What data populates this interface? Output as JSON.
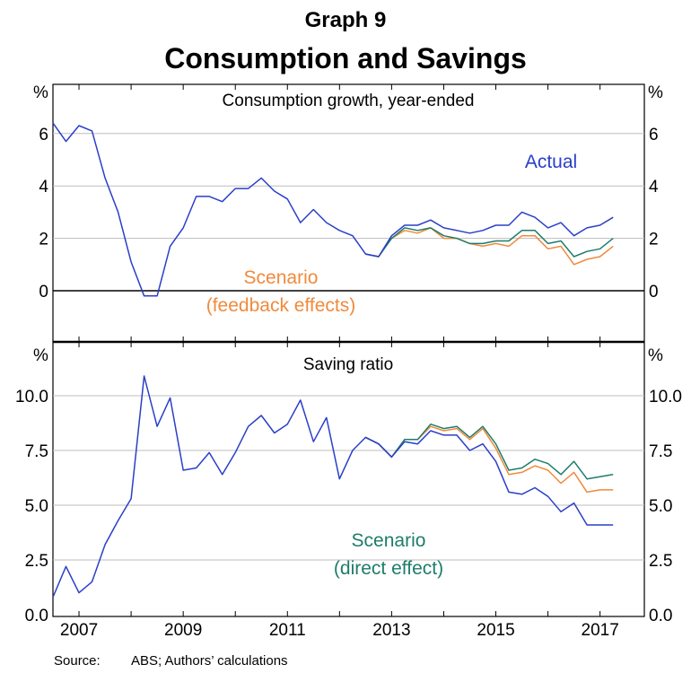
{
  "header": {
    "graph_label": "Graph 9",
    "title": "Consumption and Savings"
  },
  "source": {
    "label": "Source:",
    "text": "ABS; Authors’ calculations"
  },
  "x_axis": {
    "ticks": [
      "2007",
      "2009",
      "2011",
      "2013",
      "2015",
      "2017"
    ]
  },
  "colors": {
    "actual": "#2a3fc8",
    "feedback": "#f08a3c",
    "direct": "#1e7d6a"
  },
  "chart_data": [
    {
      "type": "line",
      "title": "Consumption growth, year-ended",
      "ylabel": "%",
      "ylim": [
        -2,
        7
      ],
      "yticks": [
        "6",
        "4",
        "2",
        "0"
      ],
      "ytick_values": [
        6,
        4,
        2,
        0
      ],
      "grid": true,
      "x_start": 2006.5,
      "x_step": 0.25,
      "series": [
        {
          "name": "Actual",
          "key": "actual",
          "values": [
            6.4,
            5.7,
            6.3,
            6.1,
            4.3,
            3.0,
            1.1,
            -0.2,
            -0.2,
            1.7,
            2.4,
            3.6,
            3.6,
            3.4,
            3.9,
            3.9,
            4.3,
            3.8,
            3.5,
            2.6,
            3.1,
            2.6,
            2.3,
            2.1,
            1.4,
            1.3,
            2.1,
            2.5,
            2.5,
            2.7,
            2.4,
            2.3,
            2.2,
            2.3,
            2.5,
            2.5,
            3.0,
            2.8,
            2.4,
            2.6,
            2.1,
            2.4,
            2.5,
            2.8
          ]
        },
        {
          "name": "Scenario (feedback effects)",
          "label_lines": [
            "Scenario",
            "(feedback effects)"
          ],
          "key": "feedback",
          "start_index": 24,
          "values": [
            1.4,
            1.3,
            2.0,
            2.3,
            2.2,
            2.4,
            2.0,
            2.0,
            1.8,
            1.7,
            1.8,
            1.7,
            2.1,
            2.1,
            1.6,
            1.7,
            1.0,
            1.2,
            1.3,
            1.7
          ]
        },
        {
          "name": "Scenario (direct effect)",
          "key": "direct",
          "start_index": 24,
          "values": [
            1.4,
            1.3,
            2.0,
            2.4,
            2.3,
            2.4,
            2.1,
            2.0,
            1.8,
            1.8,
            1.9,
            1.9,
            2.3,
            2.3,
            1.8,
            1.9,
            1.3,
            1.5,
            1.6,
            2.0
          ]
        }
      ],
      "labels": {
        "actual": "Actual"
      }
    },
    {
      "type": "line",
      "title": "Saving ratio",
      "ylabel": "%",
      "ylim": [
        0,
        11.5
      ],
      "yticks": [
        "10.0",
        "7.5",
        "5.0",
        "2.5",
        "0.0"
      ],
      "ytick_values": [
        10,
        7.5,
        5,
        2.5,
        0
      ],
      "grid": true,
      "x_start": 2006.5,
      "x_step": 0.25,
      "series": [
        {
          "name": "Actual",
          "key": "actual",
          "values": [
            0.8,
            2.2,
            1.0,
            1.5,
            3.2,
            4.3,
            5.3,
            10.9,
            8.6,
            9.9,
            6.6,
            6.7,
            7.4,
            6.4,
            7.4,
            8.6,
            9.1,
            8.3,
            8.7,
            9.8,
            7.9,
            9.0,
            6.2,
            7.5,
            8.1,
            7.8,
            7.2,
            7.9,
            7.8,
            8.4,
            8.2,
            8.2,
            7.5,
            7.8,
            7.0,
            5.6,
            5.5,
            5.8,
            5.4,
            4.7,
            5.1,
            4.1,
            4.1,
            4.1
          ]
        },
        {
          "name": "Scenario (feedback effects)",
          "key": "feedback",
          "start_index": 24,
          "values": [
            8.1,
            7.8,
            7.2,
            8.0,
            8.0,
            8.6,
            8.4,
            8.5,
            8.0,
            8.5,
            7.6,
            6.4,
            6.5,
            6.8,
            6.6,
            6.0,
            6.5,
            5.6,
            5.7,
            5.7
          ]
        },
        {
          "name": "Scenario (direct effect)",
          "label_lines": [
            "Scenario",
            "(direct effect)"
          ],
          "key": "direct",
          "start_index": 24,
          "values": [
            8.1,
            7.8,
            7.2,
            8.0,
            8.0,
            8.7,
            8.5,
            8.6,
            8.1,
            8.6,
            7.8,
            6.6,
            6.7,
            7.1,
            6.9,
            6.4,
            7.0,
            6.2,
            6.3,
            6.4
          ]
        }
      ]
    }
  ]
}
